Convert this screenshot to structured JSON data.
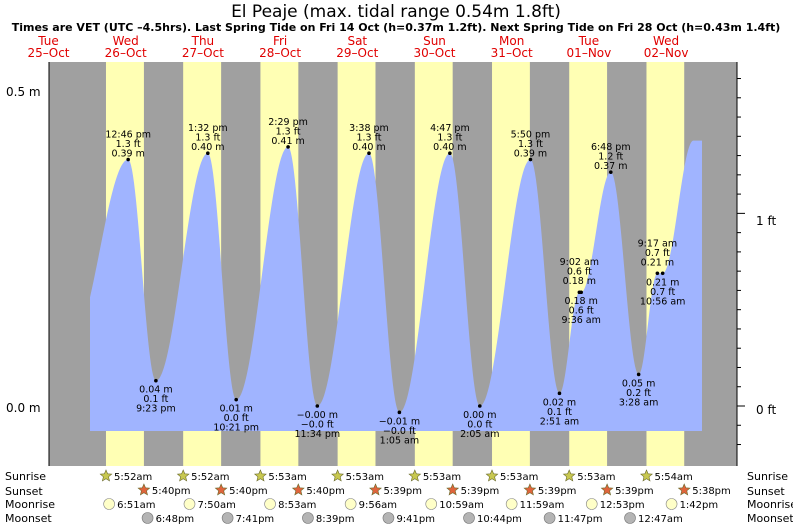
{
  "title": "El Peaje (max. tidal range 0.54m 1.8ft)",
  "subtitle": "Times are VET (UTC –4.5hrs). Last Spring Tide on Fri 14 Oct (h=0.37m 1.2ft). Next Spring Tide on Fri 28 Oct (h=0.43m 1.4ft)",
  "days": [
    {
      "dow": "Tue",
      "date": "25–Oct"
    },
    {
      "dow": "Wed",
      "date": "26–Oct"
    },
    {
      "dow": "Thu",
      "date": "27–Oct"
    },
    {
      "dow": "Fri",
      "date": "28–Oct"
    },
    {
      "dow": "Sat",
      "date": "29–Oct"
    },
    {
      "dow": "Sun",
      "date": "30–Oct"
    },
    {
      "dow": "Mon",
      "date": "31–Oct"
    },
    {
      "dow": "Tue",
      "date": "01–Nov"
    },
    {
      "dow": "Wed",
      "date": "02–Nov"
    }
  ],
  "colors": {
    "night": "#a0a0a0",
    "day": "#ffffb4",
    "water": "#a0b4ff",
    "sun_star": "#c8c850",
    "sunset_star": "#e0643c",
    "moon": "#ffffc8",
    "moonset": "#b4b4b4",
    "day_label": "#e00000"
  },
  "chart_data": {
    "type": "area",
    "title": "El Peaje (max. tidal range 0.54m 1.8ft)",
    "ylabel_left_ticks": [
      "0.5 m",
      "0.0 m"
    ],
    "ylabel_right_ticks": [
      "1 ft",
      "0 ft"
    ],
    "ylim_m": [
      -0.09,
      0.57
    ],
    "x_range": [
      "25-Oct 12:00",
      "02-Nov 20:00"
    ],
    "tides": [
      {
        "day": 1,
        "time": "12:46 pm",
        "h": 0.39,
        "ft": "1.3 ft",
        "m": "0.39 m",
        "type": "high"
      },
      {
        "day": 1,
        "time": "9:23 pm",
        "h": 0.04,
        "ft": "0.1 ft",
        "m": "0.04 m",
        "type": "low"
      },
      {
        "day": 2,
        "time": "1:32 pm",
        "h": 0.4,
        "ft": "1.3 ft",
        "m": "0.40 m",
        "type": "high"
      },
      {
        "day": 2,
        "time": "10:21 pm",
        "h": 0.01,
        "ft": "0.0 ft",
        "m": "0.01 m",
        "type": "low"
      },
      {
        "day": 3,
        "time": "2:29 pm",
        "h": 0.41,
        "ft": "1.3 ft",
        "m": "0.41 m",
        "type": "high"
      },
      {
        "day": 3,
        "time": "11:34 pm",
        "h": -0.0,
        "ft": "−0.0 ft",
        "m": "−0.00 m",
        "type": "low"
      },
      {
        "day": 4,
        "time": "3:38 pm",
        "h": 0.4,
        "ft": "1.3 ft",
        "m": "0.40 m",
        "type": "high"
      },
      {
        "day": 5,
        "time": "1:05 am",
        "h": -0.01,
        "ft": "−0.0 ft",
        "m": "−0.01 m",
        "type": "low"
      },
      {
        "day": 5,
        "time": "4:47 pm",
        "h": 0.4,
        "ft": "1.3 ft",
        "m": "0.40 m",
        "type": "high"
      },
      {
        "day": 6,
        "time": "2:05 am",
        "h": 0.0,
        "ft": "0.0 ft",
        "m": "0.00 m",
        "type": "low"
      },
      {
        "day": 6,
        "time": "5:50 pm",
        "h": 0.39,
        "ft": "1.3 ft",
        "m": "0.39 m",
        "type": "high"
      },
      {
        "day": 7,
        "time": "2:51 am",
        "h": 0.02,
        "ft": "0.1 ft",
        "m": "0.02 m",
        "type": "low"
      },
      {
        "day": 7,
        "time": "9:02 am",
        "h": 0.18,
        "ft": "0.6 ft",
        "m": "0.18 m",
        "type": "high"
      },
      {
        "day": 7,
        "time": "9:36 am",
        "h": 0.18,
        "ft": "0.6 ft",
        "m": "0.18 m",
        "type": "low"
      },
      {
        "day": 7,
        "time": "6:48 pm",
        "h": 0.37,
        "ft": "1.2 ft",
        "m": "0.37 m",
        "type": "high"
      },
      {
        "day": 8,
        "time": "3:28 am",
        "h": 0.05,
        "ft": "0.2 ft",
        "m": "0.05 m",
        "type": "low"
      },
      {
        "day": 8,
        "time": "9:17 am",
        "h": 0.21,
        "ft": "0.7 ft",
        "m": "0.21 m",
        "type": "high"
      },
      {
        "day": 8,
        "time": "10:56 am",
        "h": 0.21,
        "ft": "0.7 ft",
        "m": "0.21 m",
        "type": "low"
      }
    ]
  },
  "rows": {
    "sunrise": {
      "label": "Sunrise",
      "times": [
        "5:52am",
        "5:52am",
        "5:53am",
        "5:53am",
        "5:53am",
        "5:53am",
        "5:53am",
        "5:54am"
      ]
    },
    "sunset": {
      "label": "Sunset",
      "times": [
        "5:40pm",
        "5:40pm",
        "5:40pm",
        "5:39pm",
        "5:39pm",
        "5:39pm",
        "5:39pm",
        "5:38pm"
      ]
    },
    "moonrise": {
      "label": "Moonrise",
      "times": [
        "6:51am",
        "7:50am",
        "8:53am",
        "9:56am",
        "10:59am",
        "11:59am",
        "12:53pm",
        "1:42pm"
      ]
    },
    "moonset": {
      "label": "Moonset",
      "times": [
        "6:48pm",
        "7:41pm",
        "8:39pm",
        "9:41pm",
        "10:44pm",
        "11:47pm",
        "12:47am"
      ]
    }
  },
  "moonset_days": [
    1,
    2,
    3,
    4,
    5,
    6,
    8
  ]
}
